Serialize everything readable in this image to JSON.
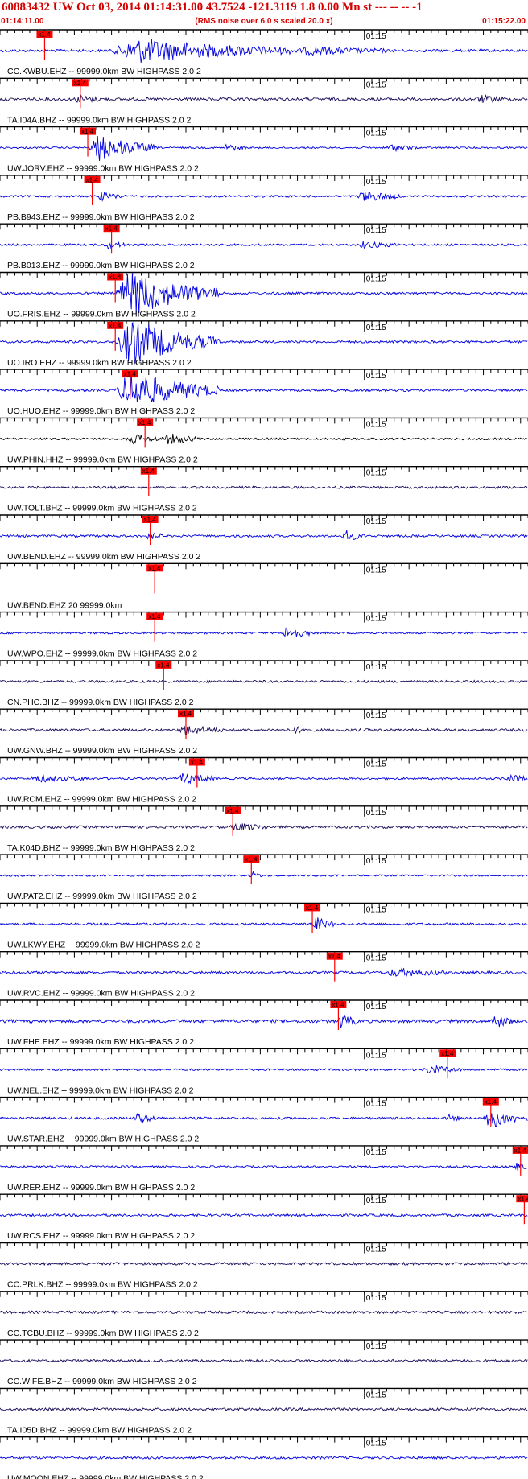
{
  "header": {
    "title": "60883432 UW Oct 03, 2014 01:14:31.00   43.7524 -121.3119  1.8 0.00 Mn st --- -- --  -1",
    "start_time": "01:14:11.00",
    "end_time": "01:15:22.00",
    "subtitle": "(RMS noise over 6.0 s scaled 20.0 x)"
  },
  "colors": {
    "accent": "#d40000",
    "trace": "#0000e0",
    "trace_dark": "#1a0a5a",
    "trace_black": "#000000",
    "axis": "#000000"
  },
  "chart_data": {
    "type": "line",
    "title": "60883432 UW Oct 03, 2014 01:14:31.00   43.7524 -121.3119  1.8 0.00 Mn st --- -- --  -1",
    "xlim": [
      "01:14:11.00",
      "01:15:22.00"
    ],
    "x_tick_label": "01:15",
    "pick_label": "x1.4",
    "traces": [
      {
        "label": "CC.KWBU.EHZ -- 99999.0km BW  HIGHPASS  2.0  2",
        "pick_s": 6.0,
        "bursts": [
          [
            15,
            40,
            7.0
          ],
          [
            40,
            52,
            2.0
          ]
        ],
        "noise": 0.9,
        "color": "trace"
      },
      {
        "label": "TA.I04A.BHZ -- 99999.0km BW  HIGHPASS  2.0  2",
        "pick_s": 10.8,
        "bursts": [
          [
            10,
            14,
            1.6
          ],
          [
            64,
            68,
            1.8
          ]
        ],
        "noise": 1.0,
        "color": "trace_dark"
      },
      {
        "label": "UW.JORV.EHZ -- 99999.0km BW  HIGHPASS  2.0  2",
        "pick_s": 11.8,
        "bursts": [
          [
            12,
            21,
            8.0
          ],
          [
            30,
            33,
            1.8
          ],
          [
            52,
            56,
            2.0
          ]
        ],
        "noise": 0.6,
        "color": "trace"
      },
      {
        "label": "PB.B943.EHZ -- 99999.0km BW  HIGHPASS  2.0  2",
        "pick_s": 12.4,
        "bursts": [
          [
            13,
            17,
            2.0
          ],
          [
            48,
            54,
            3.0
          ]
        ],
        "noise": 0.7,
        "color": "trace"
      },
      {
        "label": "PB.B013.EHZ -- 99999.0km BW  HIGHPASS  2.0  2",
        "pick_s": 15.0,
        "bursts": [
          [
            14,
            17,
            2.0
          ],
          [
            48,
            54,
            1.6
          ]
        ],
        "noise": 0.7,
        "color": "trace"
      },
      {
        "label": "UO.FRIS.EHZ -- 99999.0km BW  HIGHPASS  2.0  2",
        "pick_s": 15.5,
        "bursts": [
          [
            15.5,
            29.5,
            14.0
          ]
        ],
        "noise": 0.8,
        "color": "trace"
      },
      {
        "label": "UO.IRO.EHZ -- 99999.0km BW  HIGHPASS  2.0  2",
        "pick_s": 15.5,
        "bursts": [
          [
            15.5,
            29.5,
            14.0
          ]
        ],
        "noise": 0.8,
        "color": "trace"
      },
      {
        "label": "UO.HUO.EHZ -- 99999.0km BW  HIGHPASS  2.0  2",
        "pick_s": 17.5,
        "bursts": [
          [
            15.5,
            29.5,
            12.0
          ]
        ],
        "noise": 0.8,
        "color": "trace"
      },
      {
        "label": "UW.PHIN.HHZ -- 99999.0km BW  HIGHPASS  2.0  2",
        "pick_s": 19.5,
        "bursts": [
          [
            17,
            22,
            2.4
          ],
          [
            22,
            27,
            3.0
          ]
        ],
        "noise": 0.7,
        "color": "trace_black"
      },
      {
        "label": "UW.TOLT.BHZ -- 99999.0km BW  HIGHPASS  2.0  2",
        "pick_s": 20.0,
        "bursts": [],
        "noise": 0.8,
        "color": "trace_dark"
      },
      {
        "label": "UW.BEND.EHZ -- 99999.0km BW  HIGHPASS  2.0  2",
        "pick_s": 20.2,
        "bursts": [
          [
            19.5,
            22,
            2.2
          ],
          [
            46,
            49,
            3.0
          ]
        ],
        "noise": 0.8,
        "color": "trace"
      },
      {
        "label": "UW.BEND.EHZ 20 99999.0km",
        "pick_s": 20.8,
        "bursts": [],
        "noise": 0.0,
        "color": "trace"
      },
      {
        "label": "UW.WPO.EHZ -- 99999.0km BW  HIGHPASS  2.0  2",
        "pick_s": 20.8,
        "bursts": [
          [
            38,
            42,
            4.0
          ]
        ],
        "noise": 0.7,
        "color": "trace"
      },
      {
        "label": "CN.PHC.BHZ -- 99999.0km BW  HIGHPASS  2.0  2",
        "pick_s": 22.0,
        "bursts": [],
        "noise": 0.8,
        "color": "trace_dark"
      },
      {
        "label": "UW.GNW.BHZ -- 99999.0km BW  HIGHPASS  2.0  2",
        "pick_s": 25.0,
        "bursts": [
          [
            24,
            30,
            2.5
          ],
          [
            39,
            42,
            1.8
          ]
        ],
        "noise": 0.9,
        "color": "trace_dark"
      },
      {
        "label": "UW.RCM.EHZ -- 99999.0km BW  HIGHPASS  2.0  2",
        "pick_s": 26.5,
        "bursts": [
          [
            4,
            12,
            1.6
          ],
          [
            24,
            29,
            3.2
          ],
          [
            68,
            71,
            2.4
          ]
        ],
        "noise": 0.7,
        "color": "trace"
      },
      {
        "label": "TA.K04D.BHZ -- 99999.0km BW  HIGHPASS  2.0  2",
        "pick_s": 31.3,
        "bursts": [
          [
            31,
            36,
            2.0
          ]
        ],
        "noise": 0.9,
        "color": "trace_dark"
      },
      {
        "label": "UW.PAT2.EHZ -- 99999.0km BW  HIGHPASS  2.0  2",
        "pick_s": 33.8,
        "bursts": [
          [
            33.5,
            35.5,
            2.0
          ]
        ],
        "noise": 0.6,
        "color": "trace"
      },
      {
        "label": "UW.LKWY.EHZ -- 99999.0km BW  HIGHPASS  2.0  2",
        "pick_s": 42.0,
        "bursts": [
          [
            42,
            45,
            4.0
          ]
        ],
        "noise": 0.8,
        "color": "trace"
      },
      {
        "label": "UW.RVC.EHZ -- 99999.0km BW  HIGHPASS  2.0  2",
        "pick_s": 45.0,
        "bursts": [
          [
            52,
            60,
            2.2
          ]
        ],
        "noise": 0.9,
        "color": "trace"
      },
      {
        "label": "UW.FHE.EHZ -- 99999.0km BW  HIGHPASS  2.0  2",
        "pick_s": 45.5,
        "bursts": [
          [
            45.5,
            48,
            4.0
          ],
          [
            66,
            69,
            4.0
          ]
        ],
        "noise": 1.1,
        "color": "trace"
      },
      {
        "label": "UW.NEL.EHZ -- 99999.0km BW  HIGHPASS  2.0  2",
        "pick_s": 60.2,
        "bursts": [
          [
            57,
            62,
            2.4
          ]
        ],
        "noise": 0.7,
        "color": "trace"
      },
      {
        "label": "UW.STAR.EHZ -- 99999.0km BW  HIGHPASS  2.0  2",
        "pick_s": 66.0,
        "bursts": [
          [
            18,
            21,
            3.0
          ],
          [
            60,
            62,
            1.6
          ],
          [
            65,
            71,
            6.0
          ]
        ],
        "noise": 0.8,
        "color": "trace"
      },
      {
        "label": "UW.RER.EHZ -- 99999.0km BW  HIGHPASS  2.0  2",
        "pick_s": 70.0,
        "bursts": [
          [
            69,
            71,
            2.4
          ]
        ],
        "noise": 0.7,
        "color": "trace"
      },
      {
        "label": "UW.RCS.EHZ -- 99999.0km BW  HIGHPASS  2.0  2",
        "pick_s": 70.5,
        "bursts": [],
        "noise": 0.8,
        "color": "trace"
      },
      {
        "label": "CC.PRLK.BHZ -- 99999.0km BW  HIGHPASS  2.0  2",
        "pick_s": null,
        "bursts": [],
        "noise": 0.9,
        "color": "trace_dark"
      },
      {
        "label": "CC.TCBU.BHZ -- 99999.0km BW  HIGHPASS  2.0  2",
        "pick_s": null,
        "bursts": [],
        "noise": 0.9,
        "color": "trace_dark"
      },
      {
        "label": "CC.WIFE.BHZ -- 99999.0km BW  HIGHPASS  2.0  2",
        "pick_s": null,
        "bursts": [],
        "noise": 0.9,
        "color": "trace_dark"
      },
      {
        "label": "TA.I05D.BHZ -- 99999.0km BW  HIGHPASS  2.0  2",
        "pick_s": null,
        "bursts": [],
        "noise": 0.9,
        "color": "trace_dark"
      },
      {
        "label": "UW.MOON.EHZ -- 99999.0km BW  HIGHPASS  2.0  2",
        "pick_s": null,
        "bursts": [],
        "noise": 0.8,
        "color": "trace"
      }
    ]
  }
}
